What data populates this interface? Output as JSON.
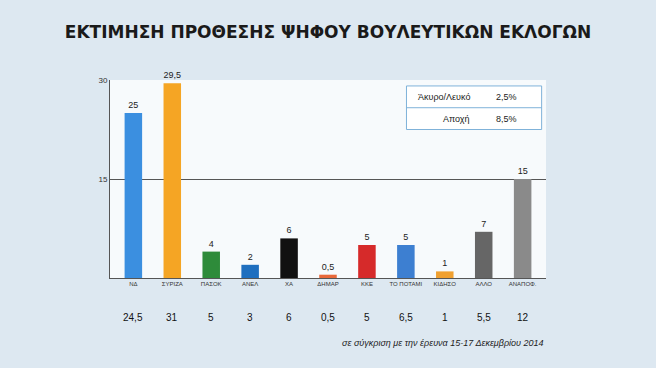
{
  "chart_data": {
    "type": "bar",
    "title": "ΕΚΤΙΜΗΣΗ ΠΡΟΘΕΣΗΣ ΨΗΦΟΥ ΒΟΥΛΕΥΤΙΚΩΝ ΕΚΛΟΓΩΝ",
    "categories": [
      "ΝΔ",
      "ΣΥΡΙΖΑ",
      "ΠΑΣΟΚ",
      "ΑΝΕΛ",
      "ΧΑ",
      "ΔΗΜΑΡ",
      "ΚΚΕ",
      "ΤΟ ΠΟΤΑΜΙ",
      "ΚΙΔΗΣΟ",
      "ΑΛΛΟ",
      "ΑΝΑΠΟΦ."
    ],
    "values": [
      25,
      29.5,
      4,
      2,
      6,
      0.5,
      5,
      5,
      1,
      7,
      15
    ],
    "value_labels": [
      "25",
      "29,5",
      "4",
      "2",
      "6",
      "0,5",
      "5",
      "5",
      "1",
      "7",
      "15"
    ],
    "colors": [
      "#3b8fe0",
      "#f5a524",
      "#2e8b3a",
      "#1f6fbf",
      "#111111",
      "#e8683a",
      "#d62a2a",
      "#3d7fd1",
      "#f0a030",
      "#666666",
      "#8a8a8a"
    ],
    "ylim": [
      0,
      30
    ],
    "yticks": [
      15,
      30
    ],
    "grid": true,
    "data_labels": true,
    "comparison": {
      "note": "σε σύγκριση με την έρευνα 15-17 Δεκεμβρίου 2014",
      "values": [
        24.5,
        31,
        5,
        3,
        6,
        0.5,
        5,
        6.5,
        1,
        5.5,
        12
      ],
      "value_labels": [
        "24,5",
        "31",
        "5",
        "3",
        "6",
        "0,5",
        "5",
        "6,5",
        "1",
        "5,5",
        "12"
      ]
    },
    "info_box": [
      {
        "label": "Άκυρο/Λευκό",
        "value": 2.5,
        "value_label": "2,5%"
      },
      {
        "label": "Αποχή",
        "value": 8.5,
        "value_label": "8,5%"
      }
    ]
  }
}
